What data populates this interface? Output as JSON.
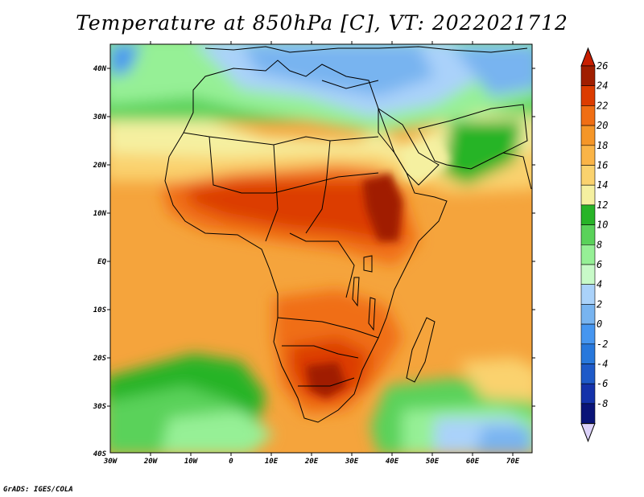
{
  "title": "Temperature at 850hPa [C], VT: 2022021712",
  "credit": "GrADS: IGES/COLA",
  "lat_labels": [
    "40N",
    "30N",
    "20N",
    "10N",
    "EQ",
    "10S",
    "20S",
    "30S",
    "40S"
  ],
  "lon_labels": [
    "30W",
    "20W",
    "10W",
    "0",
    "10E",
    "20E",
    "30E",
    "40E",
    "50E",
    "60E",
    "70E"
  ],
  "colorbar": {
    "levels": [
      {
        "value": "26",
        "color": "#a01e00"
      },
      {
        "value": "24",
        "color": "#dc3c00"
      },
      {
        "value": "22",
        "color": "#f06e14"
      },
      {
        "value": "20",
        "color": "#f59628"
      },
      {
        "value": "18",
        "color": "#fab447"
      },
      {
        "value": "16",
        "color": "#fad26e"
      },
      {
        "value": "14",
        "color": "#f5f0a0"
      },
      {
        "value": "12",
        "color": "#28b428"
      },
      {
        "value": "10",
        "color": "#5ad25a"
      },
      {
        "value": "8",
        "color": "#96f096"
      },
      {
        "value": "6",
        "color": "#c8fac8"
      },
      {
        "value": "4",
        "color": "#aad2fa"
      },
      {
        "value": "2",
        "color": "#78b4f0"
      },
      {
        "value": "0",
        "color": "#4696f0"
      },
      {
        "value": "-2",
        "color": "#2878dc"
      },
      {
        "value": "-4",
        "color": "#1e5ac8"
      },
      {
        "value": "-6",
        "color": "#1432aa"
      },
      {
        "value": "-8",
        "color": "#0a1478"
      }
    ],
    "top_overflow_color": "#c81e00",
    "bottom_overflow_color": "#dcd2fa"
  }
}
